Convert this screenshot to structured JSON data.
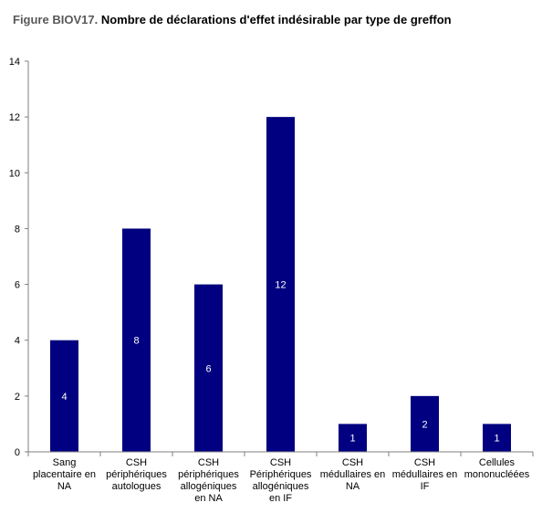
{
  "title": {
    "prefix": "Figure BIOV17.",
    "text": "Nombre de déclarations d'effet indésirable par type de greffon"
  },
  "chart_data": {
    "type": "bar",
    "categories": [
      [
        "Sang",
        "placentaire en",
        "NA"
      ],
      [
        "CSH",
        "périphériques",
        "autologues"
      ],
      [
        "CSH",
        "périphériques",
        "allogéniques",
        "en NA"
      ],
      [
        "CSH",
        "Périphériques",
        "allogéniques",
        "en IF"
      ],
      [
        "CSH",
        "médullaires en",
        "NA"
      ],
      [
        "CSH",
        "médullaires en",
        "IF"
      ],
      [
        "Cellules",
        "mononucléées"
      ]
    ],
    "values": [
      4,
      8,
      6,
      12,
      1,
      2,
      1
    ],
    "data_labels": [
      "4",
      "8",
      "6",
      "12",
      "1",
      "2",
      "1"
    ],
    "ylim": [
      0,
      14
    ],
    "yticks": [
      0,
      2,
      4,
      6,
      8,
      10,
      12,
      14
    ],
    "bar_color": "#000080",
    "grid": false,
    "legend": "none"
  }
}
